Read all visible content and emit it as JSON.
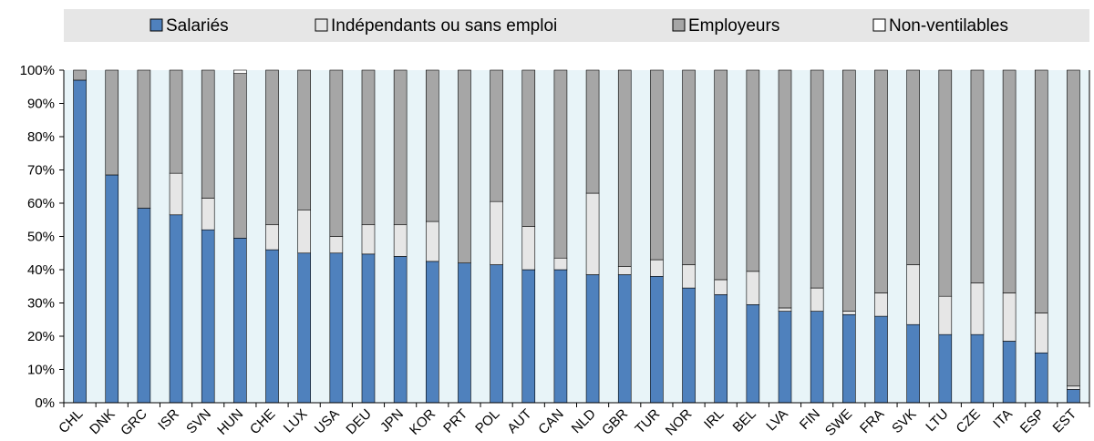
{
  "chart_data": {
    "type": "bar",
    "stacked": true,
    "categories": [
      "CHL",
      "DNK",
      "GRC",
      "ISR",
      "SVN",
      "HUN",
      "CHE",
      "LUX",
      "USA",
      "DEU",
      "JPN",
      "KOR",
      "PRT",
      "POL",
      "AUT",
      "CAN",
      "NLD",
      "GBR",
      "TUR",
      "NOR",
      "IRL",
      "BEL",
      "LVA",
      "FIN",
      "SWE",
      "FRA",
      "SVK",
      "LTU",
      "CZE",
      "ITA",
      "ESP",
      "EST"
    ],
    "series": [
      {
        "name": "Salariés",
        "color": "#4f81bd",
        "values": [
          97,
          68.5,
          58.5,
          56.5,
          52,
          49.5,
          46,
          45,
          45,
          44.7,
          44,
          42.5,
          42,
          41.5,
          40,
          40,
          38.5,
          38.5,
          38,
          34.5,
          32.5,
          29.5,
          27.5,
          27.5,
          26.5,
          26,
          23.5,
          20.5,
          20.5,
          18.5,
          15,
          4
        ]
      },
      {
        "name": "Indépendants ou sans emploi",
        "color": "#e6e6e6",
        "values": [
          0,
          0,
          0,
          12.5,
          9.5,
          0,
          7.5,
          13,
          5,
          8.8,
          9.5,
          12,
          0,
          19,
          13,
          3.5,
          24.5,
          2.5,
          5,
          7,
          4.5,
          10,
          1,
          7,
          1,
          7,
          18,
          11.5,
          15.5,
          14.5,
          12,
          1
        ]
      },
      {
        "name": "Employeurs",
        "color": "#a6a6a6",
        "values": [
          3,
          31.5,
          41.5,
          31,
          38.5,
          49.5,
          46.5,
          42,
          50,
          46.5,
          46.5,
          45.5,
          58,
          39.5,
          47,
          56.5,
          37,
          59,
          57,
          58.5,
          63,
          60.5,
          71.5,
          65.5,
          72.5,
          67,
          58.5,
          68,
          64,
          67,
          73,
          95
        ]
      },
      {
        "name": "Non-ventilables",
        "color": "#ffffff",
        "values": [
          0,
          0,
          0,
          0,
          0,
          1,
          0,
          0,
          0,
          0,
          0,
          0,
          0,
          0,
          0,
          0,
          0,
          0,
          0,
          0,
          0,
          0,
          0,
          0,
          0,
          0,
          0,
          0,
          0,
          0,
          0,
          0
        ]
      }
    ],
    "y_tick_labels": [
      "0%",
      "10%",
      "20%",
      "30%",
      "40%",
      "50%",
      "60%",
      "70%",
      "80%",
      "90%",
      "100%"
    ],
    "ylim": [
      0,
      100
    ],
    "plot_background": "#e8f4f8",
    "legend_background": "#e6e6e6",
    "legend_position": "top",
    "grid": false
  }
}
